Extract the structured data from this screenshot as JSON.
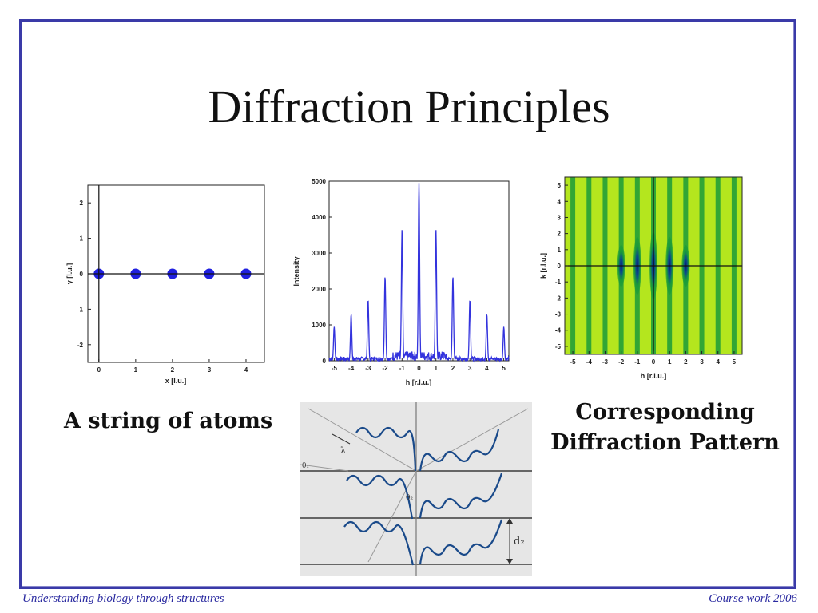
{
  "slide": {
    "title": "Diffraction Principles",
    "caption_left": "A string of atoms",
    "caption_right_line1": "Corresponding",
    "caption_right_line2": "Diffraction Pattern",
    "footer_left": "Understanding biology through structures",
    "footer_right": "Course work 2006",
    "frame_color": "#3a3aa8",
    "footer_color": "#2a2aa0"
  },
  "chart_data": [
    {
      "type": "scatter",
      "xlabel": "x [l.u.]",
      "ylabel": "y [l.u.]",
      "xlim": [
        -0.3,
        4.5
      ],
      "ylim": [
        -2.5,
        2.5
      ],
      "xticks": [
        "0",
        "1",
        "2",
        "3",
        "4"
      ],
      "yticks": [
        "2",
        "1",
        "0",
        "-1",
        "-2"
      ],
      "x": [
        0,
        1,
        2,
        3,
        4
      ],
      "y": [
        0,
        0,
        0,
        0,
        0
      ],
      "point_color": "#1f1fe0"
    },
    {
      "type": "line",
      "xlabel": "h [r.l.u.]",
      "ylabel": "Intensity",
      "xlim": [
        -5.3,
        5.3
      ],
      "ylim": [
        0,
        5000
      ],
      "xticks": [
        "-5",
        "-4",
        "-3",
        "-2",
        "-1",
        "0",
        "1",
        "2",
        "3",
        "4",
        "5"
      ],
      "yticks": [
        "5000",
        "4000",
        "3000",
        "2000",
        "1000",
        "0"
      ],
      "peaks_h": [
        -5,
        -4,
        -3,
        -2,
        -1,
        0,
        1,
        2,
        3,
        4,
        5
      ],
      "peaks_intensity": [
        950,
        1300,
        1700,
        2350,
        3650,
        4950,
        3650,
        2350,
        1700,
        1300,
        950
      ],
      "line_color": "#3333dd"
    },
    {
      "type": "heatmap",
      "xlabel": "h [r.l.u.]",
      "ylabel": "k [r.l.u.]",
      "xlim": [
        -5.5,
        5.5
      ],
      "ylim": [
        -5.5,
        5.5
      ],
      "xticks": [
        "-5",
        "-4",
        "-3",
        "-2",
        "-1",
        "0",
        "1",
        "2",
        "3",
        "4",
        "5"
      ],
      "yticks": [
        "5",
        "4",
        "3",
        "2",
        "1",
        "0",
        "-1",
        "-2",
        "-3",
        "-4",
        "-5"
      ],
      "stripe_h": [
        -5,
        -4,
        -3,
        -2,
        -1,
        0,
        1,
        2,
        3,
        4,
        5
      ],
      "background_color": "#b4e61e",
      "stripe_color": "#1a9a3a"
    }
  ],
  "diagram": {
    "label_lambda": "λ",
    "label_theta1": "θ₁",
    "label_theta2": "θ₂",
    "label_d": "d₂"
  }
}
